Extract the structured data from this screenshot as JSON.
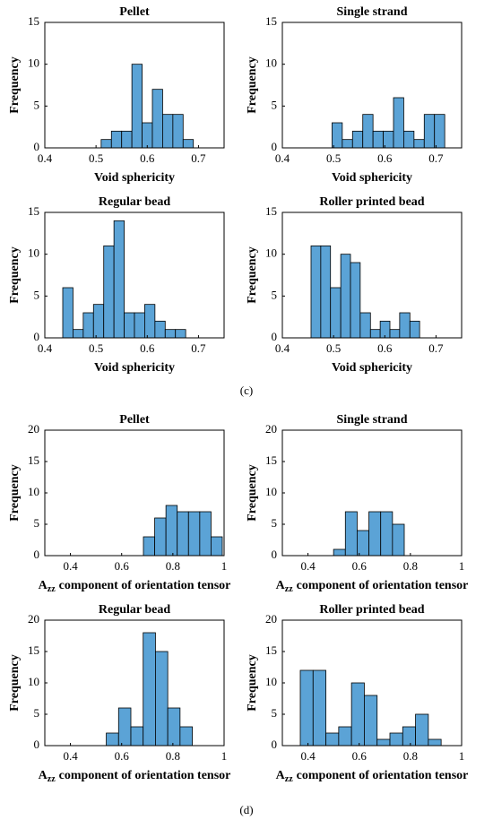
{
  "chart_data": [
    {
      "type": "histogram",
      "title": "Pellet",
      "xlabel": "Void sphericity",
      "ylabel": "Frequency",
      "color": "#5ba3d6",
      "bins": [
        0.51,
        0.53,
        0.55,
        0.57,
        0.59,
        0.61,
        0.63,
        0.65,
        0.67,
        0.69
      ],
      "values": [
        1,
        2,
        2,
        10,
        3,
        7,
        4,
        4,
        1
      ],
      "xlim": [
        0.4,
        0.75
      ],
      "xticks": [
        0.4,
        0.5,
        0.6,
        0.7
      ],
      "ylim": [
        0,
        15
      ],
      "yticks": [
        0,
        5,
        10,
        15
      ]
    },
    {
      "type": "histogram",
      "title": "Single strand",
      "xlabel": "Void sphericity",
      "ylabel": "Frequency",
      "color": "#5ba3d6",
      "bins": [
        0.497,
        0.517,
        0.537,
        0.557,
        0.577,
        0.597,
        0.617,
        0.637,
        0.657,
        0.677,
        0.697,
        0.717
      ],
      "values": [
        3,
        1,
        2,
        4,
        2,
        2,
        6,
        2,
        1,
        4,
        4
      ],
      "xlim": [
        0.4,
        0.75
      ],
      "xticks": [
        0.4,
        0.5,
        0.6,
        0.7
      ],
      "ylim": [
        0,
        15
      ],
      "yticks": [
        0,
        5,
        10,
        15
      ]
    },
    {
      "type": "histogram",
      "title": "Regular bead",
      "xlabel": "Void sphericity",
      "ylabel": "Frequency",
      "color": "#5ba3d6",
      "bins": [
        0.435,
        0.455,
        0.475,
        0.495,
        0.515,
        0.535,
        0.555,
        0.575,
        0.595,
        0.615,
        0.635,
        0.655,
        0.675
      ],
      "values": [
        6,
        1,
        3,
        4,
        11,
        14,
        3,
        3,
        4,
        2,
        1,
        1
      ],
      "xlim": [
        0.4,
        0.75
      ],
      "xticks": [
        0.4,
        0.5,
        0.6,
        0.7
      ],
      "ylim": [
        0,
        15
      ],
      "yticks": [
        0,
        5,
        10,
        15
      ]
    },
    {
      "type": "histogram",
      "title": "Roller printed bead",
      "xlabel": "Void sphericity",
      "ylabel": "Frequency",
      "color": "#5ba3d6",
      "bins": [
        0.456,
        0.475,
        0.494,
        0.514,
        0.533,
        0.552,
        0.572,
        0.591,
        0.61,
        0.629,
        0.649,
        0.668
      ],
      "values": [
        11,
        11,
        6,
        10,
        9,
        3,
        1,
        2,
        1,
        3,
        2
      ],
      "xlim": [
        0.4,
        0.75
      ],
      "xticks": [
        0.4,
        0.5,
        0.6,
        0.7
      ],
      "ylim": [
        0,
        15
      ],
      "yticks": [
        0,
        5,
        10,
        15
      ]
    },
    {
      "type": "histogram",
      "title": "Pellet",
      "xlabel": {
        "base": "A",
        "sub": "zz",
        "text": "component of orientation tensor"
      },
      "ylabel": "Frequency",
      "color": "#5ba3d6",
      "bins": [
        0.685,
        0.729,
        0.773,
        0.817,
        0.861,
        0.905,
        0.949,
        0.993
      ],
      "values": [
        3,
        6,
        8,
        7,
        7,
        7,
        3
      ],
      "xlim": [
        0.3,
        1
      ],
      "xticks": [
        0.4,
        0.6,
        0.8,
        1
      ],
      "ylim": [
        0,
        20
      ],
      "yticks": [
        0,
        5,
        10,
        15,
        20
      ]
    },
    {
      "type": "histogram",
      "title": "Single strand",
      "xlabel": {
        "base": "A",
        "sub": "zz",
        "text": "component of orientation tensor"
      },
      "ylabel": "Frequency",
      "color": "#5ba3d6",
      "bins": [
        0.5,
        0.546,
        0.592,
        0.638,
        0.684,
        0.73,
        0.776
      ],
      "values": [
        1,
        7,
        4,
        7,
        7,
        5
      ],
      "xlim": [
        0.3,
        1
      ],
      "xticks": [
        0.4,
        0.6,
        0.8,
        1
      ],
      "ylim": [
        0,
        20
      ],
      "yticks": [
        0,
        5,
        10,
        15,
        20
      ]
    },
    {
      "type": "histogram",
      "title": "Regular bead",
      "xlabel": {
        "base": "A",
        "sub": "zz",
        "text": "component of orientation tensor"
      },
      "ylabel": "Frequency",
      "color": "#5ba3d6",
      "bins": [
        0.54,
        0.588,
        0.636,
        0.684,
        0.732,
        0.78,
        0.828,
        0.876
      ],
      "values": [
        2,
        6,
        3,
        18,
        15,
        6,
        3
      ],
      "xlim": [
        0.3,
        1
      ],
      "xticks": [
        0.4,
        0.6,
        0.8,
        1
      ],
      "ylim": [
        0,
        20
      ],
      "yticks": [
        0,
        5,
        10,
        15,
        20
      ]
    },
    {
      "type": "histogram",
      "title": "Roller printed bead",
      "xlabel": {
        "base": "A",
        "sub": "zz",
        "text": "component of orientation tensor"
      },
      "ylabel": "Frequency",
      "color": "#5ba3d6",
      "bins": [
        0.37,
        0.42,
        0.47,
        0.52,
        0.57,
        0.62,
        0.67,
        0.72,
        0.77,
        0.82,
        0.87,
        0.92
      ],
      "values": [
        12,
        12,
        2,
        3,
        10,
        8,
        1,
        2,
        3,
        5,
        1
      ],
      "xlim": [
        0.3,
        1
      ],
      "xticks": [
        0.4,
        0.6,
        0.8,
        1
      ],
      "ylim": [
        0,
        20
      ],
      "yticks": [
        0,
        5,
        10,
        15,
        20
      ]
    }
  ],
  "panel_labels": [
    "(c)",
    "(d)"
  ]
}
